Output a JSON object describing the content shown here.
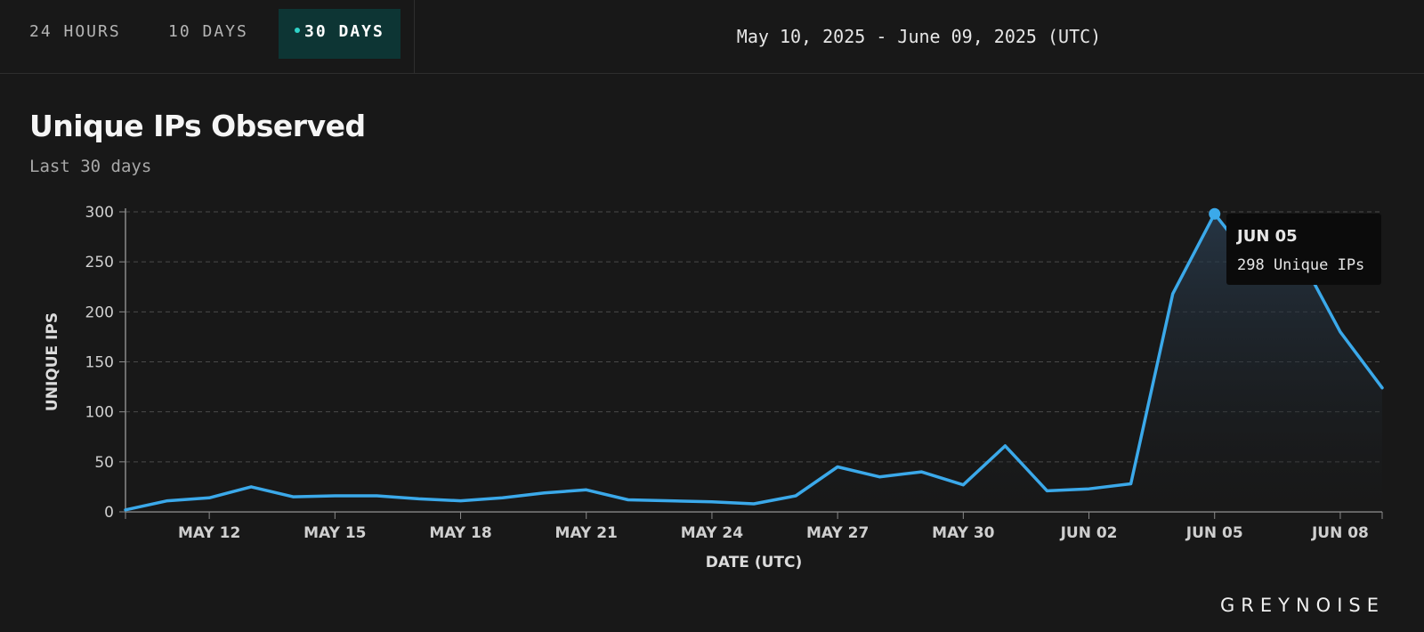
{
  "tabs": [
    {
      "label": "24 HOURS",
      "active": false
    },
    {
      "label": "10 DAYS",
      "active": false
    },
    {
      "label": "30 DAYS",
      "active": true
    }
  ],
  "date_range": "May 10, 2025 - June 09, 2025 (UTC)",
  "brand": "GREYNOISE",
  "tooltip": {
    "date": "JUN 05",
    "value_text": "298 Unique IPs"
  },
  "colors": {
    "line": "#3ba9ea",
    "active_tab": "#0d3534",
    "active_dot": "#2fd3c8",
    "background": "#181818"
  },
  "chart_data": {
    "type": "area",
    "title": "Unique IPs Observed",
    "subtitle": "Last 30 days",
    "xlabel": "DATE (UTC)",
    "ylabel": "UNIQUE IPS",
    "ylim": [
      0,
      300
    ],
    "yticks": [
      0,
      50,
      100,
      150,
      200,
      250,
      300
    ],
    "grid": "horizontal dashed",
    "xtick_labels": [
      {
        "date": "2025-05-12",
        "label": "MAY 12"
      },
      {
        "date": "2025-05-15",
        "label": "MAY 15"
      },
      {
        "date": "2025-05-18",
        "label": "MAY 18"
      },
      {
        "date": "2025-05-21",
        "label": "MAY 21"
      },
      {
        "date": "2025-05-24",
        "label": "MAY 24"
      },
      {
        "date": "2025-05-27",
        "label": "MAY 27"
      },
      {
        "date": "2025-05-30",
        "label": "MAY 30"
      },
      {
        "date": "2025-06-02",
        "label": "JUN 02"
      },
      {
        "date": "2025-06-05",
        "label": "JUN 05"
      },
      {
        "date": "2025-06-08",
        "label": "JUN 08"
      }
    ],
    "x": [
      "2025-05-10",
      "2025-05-11",
      "2025-05-12",
      "2025-05-13",
      "2025-05-14",
      "2025-05-15",
      "2025-05-16",
      "2025-05-17",
      "2025-05-18",
      "2025-05-19",
      "2025-05-20",
      "2025-05-21",
      "2025-05-22",
      "2025-05-23",
      "2025-05-24",
      "2025-05-25",
      "2025-05-26",
      "2025-05-27",
      "2025-05-28",
      "2025-05-29",
      "2025-05-30",
      "2025-05-31",
      "2025-06-01",
      "2025-06-02",
      "2025-06-03",
      "2025-06-04",
      "2025-06-05",
      "2025-06-06",
      "2025-06-07",
      "2025-06-08",
      "2025-06-09"
    ],
    "values": [
      2,
      11,
      14,
      25,
      15,
      16,
      16,
      13,
      11,
      14,
      19,
      22,
      12,
      11,
      10,
      8,
      16,
      45,
      35,
      40,
      27,
      66,
      21,
      23,
      28,
      218,
      298,
      245,
      258,
      180,
      124
    ],
    "highlight": {
      "date": "2025-06-05",
      "value": 298
    }
  }
}
